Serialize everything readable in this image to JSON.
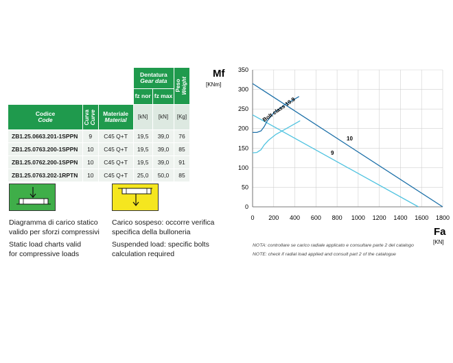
{
  "table": {
    "headers": {
      "codice": "Codice",
      "codice_en": "Code",
      "curva": "Curva",
      "curva_en": "Curve",
      "materiale": "Materiale",
      "materiale_en": "Material",
      "dentatura": "Dentatura",
      "dentatura_en": "Gear data",
      "fz_nor": "fz nor",
      "fz_max": "fz max",
      "peso": "Peso",
      "peso_en": "Weight",
      "unit_kn1": "[kN]",
      "unit_kn2": "[kN]",
      "unit_kg": "[Kg]"
    },
    "rows": [
      {
        "code": "ZB1.25.0663.201-1SPPN",
        "curve": "9",
        "material": "C45 Q+T",
        "fz_nor": "19,5",
        "fz_max": "39,0",
        "weight": "76"
      },
      {
        "code": "ZB1.25.0763.200-1SPPN",
        "curve": "10",
        "material": "C45 Q+T",
        "fz_nor": "19,5",
        "fz_max": "39,0",
        "weight": "85"
      },
      {
        "code": "ZB1.25.0762.200-1SPPN",
        "curve": "10",
        "material": "C45 Q+T",
        "fz_nor": "19,5",
        "fz_max": "39,0",
        "weight": "91"
      },
      {
        "code": "ZB1.25.0763.202-1RPTN",
        "curve": "10",
        "material": "C45 Q+T",
        "fz_nor": "25,0",
        "fz_max": "50,0",
        "weight": "85"
      }
    ]
  },
  "legend": {
    "static_it_1": "Diagramma di carico statico",
    "static_it_2": "valido per sforzi compressivi",
    "static_en_1": "Static load charts valid",
    "static_en_2": "for compressive loads",
    "susp_it_1": "Carico sospeso: occorre verifica",
    "susp_it_2": "specifica della bulloneria",
    "susp_en_1": "Suspended load: specific bolts",
    "susp_en_2": "calculation required",
    "static_color": "#3fae49",
    "susp_color": "#f5e61f"
  },
  "notes": {
    "it": "NOTA: controllare se carico radiale applicato e consultare parte 2 del catalogo",
    "en": "NOTE: check if radial load applied and consult part 2 of the catalogue"
  },
  "chart_data": {
    "type": "line",
    "ylabel": "Mf",
    "ylabel_unit": "[KNm]",
    "xlabel": "Fa",
    "xlabel_unit": "[KN]",
    "xlim": [
      0,
      1800
    ],
    "ylim": [
      0,
      350
    ],
    "xticks": [
      0,
      200,
      400,
      600,
      800,
      1000,
      1200,
      1400,
      1600,
      1800
    ],
    "yticks": [
      0,
      50,
      100,
      150,
      200,
      250,
      300,
      350
    ],
    "grid": true,
    "series": [
      {
        "name": "10",
        "color": "#1b6fa8",
        "points": [
          [
            0,
            315
          ],
          [
            1800,
            0
          ]
        ]
      },
      {
        "name": "9",
        "color": "#4fc3e0",
        "points": [
          [
            0,
            235
          ],
          [
            1570,
            0
          ]
        ]
      },
      {
        "name": "Bolt class 10.9",
        "color": "#1b6fa8",
        "points": [
          [
            0,
            190
          ],
          [
            40,
            190
          ],
          [
            80,
            194
          ],
          [
            110,
            205
          ],
          [
            140,
            220
          ],
          [
            200,
            240
          ],
          [
            300,
            260
          ],
          [
            440,
            282
          ]
        ]
      },
      {
        "name": "",
        "color": "#4fc3e0",
        "points": [
          [
            0,
            138
          ],
          [
            40,
            139
          ],
          [
            80,
            146
          ],
          [
            110,
            158
          ],
          [
            150,
            170
          ],
          [
            220,
            185
          ],
          [
            320,
            200
          ],
          [
            450,
            220
          ]
        ]
      }
    ]
  }
}
